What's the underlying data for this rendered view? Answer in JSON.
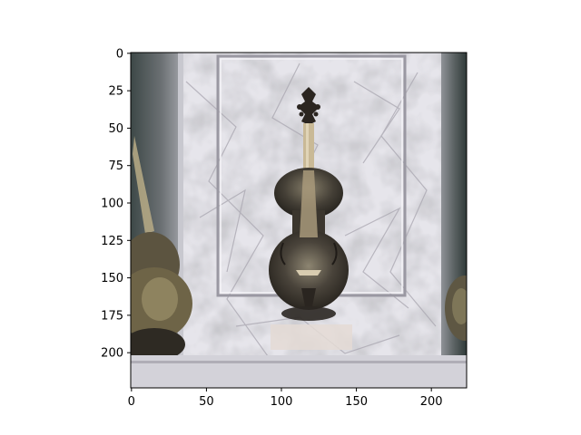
{
  "chart_data": {
    "type": "image",
    "title": "",
    "xlabel": "",
    "ylabel": "",
    "image_width": 224,
    "image_height": 224,
    "xlim": [
      -0.5,
      223.5
    ],
    "ylim": [
      223.5,
      -0.5
    ],
    "y_inverted": true,
    "xticks": [
      0,
      50,
      100,
      150,
      200
    ],
    "yticks": [
      0,
      25,
      50,
      75,
      100,
      125,
      150,
      175,
      200
    ],
    "grid": false,
    "legend": "none",
    "image_subject": "violin on a crumpled white cloth background with framed border",
    "colors": {
      "cloth_light": "#e9e8ee",
      "cloth_shadow": "#b9b6c0",
      "frame_dark": "#5f6468",
      "frame_teal": "#43524f",
      "violin_body": "#4a443b",
      "violin_highlight": "#9c9274",
      "violin_neck": "#c9b996",
      "side_instrument": "#6e6447",
      "axis": "#000000"
    }
  }
}
